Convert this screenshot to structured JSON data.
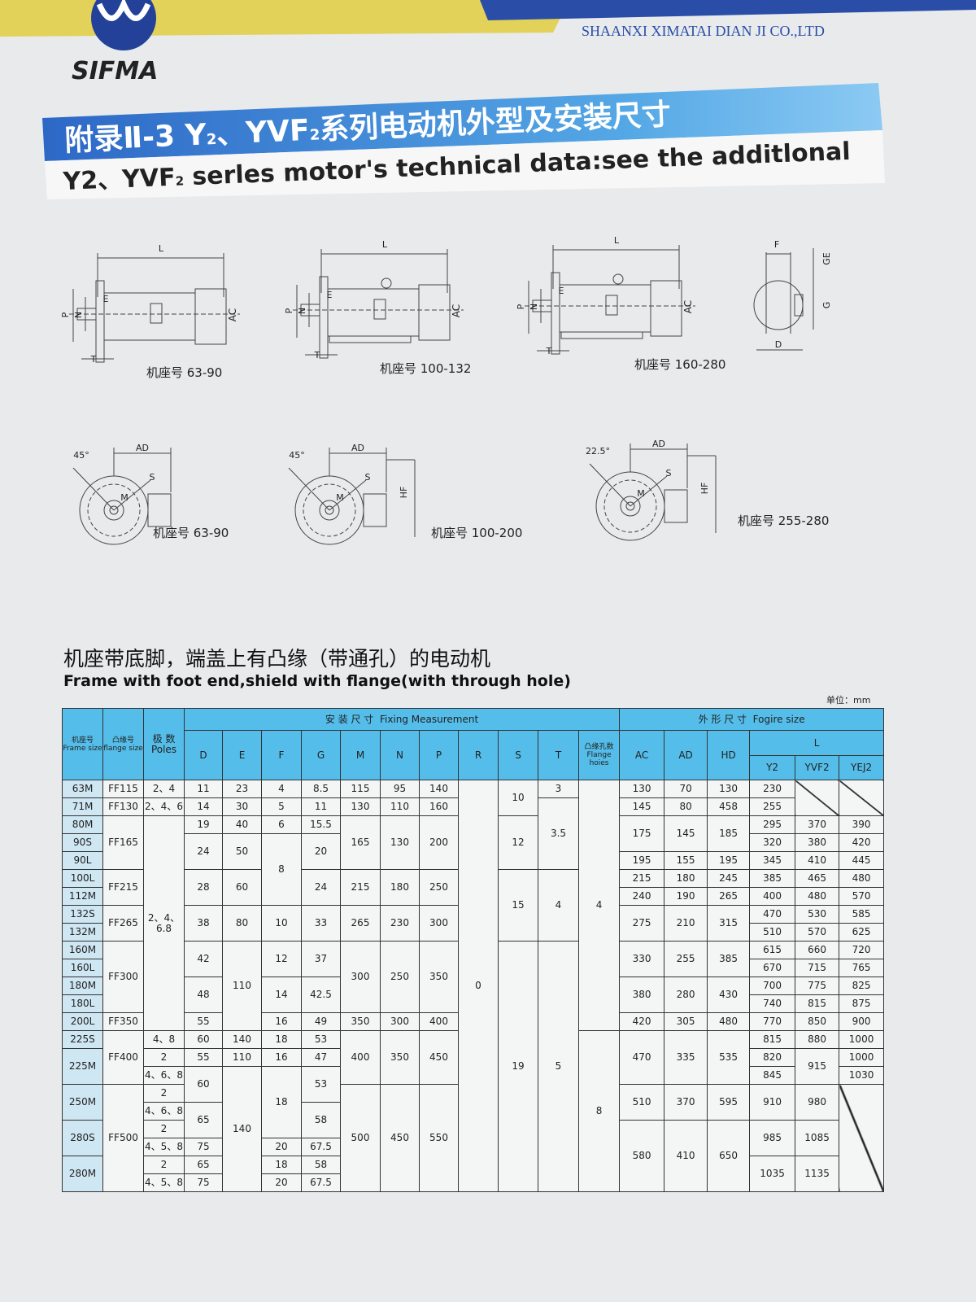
{
  "header": {
    "logo": "SIFMA",
    "company": "SHAANXI XIMATAI DIAN JI CO.,LTD"
  },
  "banner": {
    "title_parts": [
      "附录Ⅱ-3 Y",
      "2",
      "、YVF",
      "2",
      "系列电动机外型及安装尺寸"
    ],
    "subtitle_parts": [
      "Y2、YVF",
      "2",
      " serles motor's technical data:see the additlonal"
    ]
  },
  "drawings": {
    "side_views": [
      {
        "labels": [
          "L",
          "P",
          "N",
          "E",
          "T",
          "AC"
        ],
        "caption": "机座号 63-90"
      },
      {
        "labels": [
          "L",
          "P",
          "N",
          "E",
          "T",
          "AC"
        ],
        "caption": "机座号 100-132"
      },
      {
        "labels": [
          "L",
          "P",
          "N",
          "E",
          "T",
          "AC"
        ],
        "caption": "机座号 160-280"
      }
    ],
    "shaft": {
      "labels": [
        "F",
        "GE",
        "G",
        "D"
      ]
    },
    "end_views": [
      {
        "labels": [
          "45°",
          "AD",
          "S",
          "M"
        ],
        "caption": "机座号 63-90"
      },
      {
        "labels": [
          "45°",
          "AD",
          "S",
          "M",
          "HF"
        ],
        "caption": "机座号 100-200"
      },
      {
        "labels": [
          "22.5°",
          "AD",
          "S",
          "M",
          "HF"
        ],
        "caption": "机座号 255-280"
      }
    ]
  },
  "section": {
    "title_cn": "机座带底脚，端盖上有凸缘（带通孔）的电动机",
    "title_en": "Frame with foot end,shield with flange(with through hole)",
    "unit": "单位：mm"
  },
  "table": {
    "header": {
      "frame_cn": "机座号",
      "frame_en": "Frame size",
      "flange_cn": "凸缘号",
      "flange_en": "flange size",
      "poles_cn": "极 数",
      "poles_en": "Poles",
      "fixing_cn": "安 装 尺 寸",
      "fixing_en": "Fixing Measurement",
      "outline_cn": "外 形 尺 寸",
      "outline_en": "Fogire size",
      "fixing_columns": [
        "D",
        "E",
        "F",
        "G",
        "M",
        "N",
        "P",
        "R",
        "S",
        "T"
      ],
      "holes_cn": "凸缘孔数",
      "holes_en": "Flange hoies",
      "outline_columns": [
        "AC",
        "AD",
        "HD"
      ],
      "length": "L",
      "length_columns": [
        "Y2",
        "YVF2",
        "YEJ2"
      ]
    },
    "rows": [
      [
        "63M",
        "FF115",
        "2、4",
        "11",
        "23",
        "4",
        "8.5",
        "115",
        "95",
        "140",
        "0",
        "10",
        "3",
        "4",
        "130",
        "70",
        "130",
        "230"
      ],
      [
        "71M",
        "FF130",
        "2、4、6",
        "14",
        "30",
        "5",
        "11",
        "130",
        "110",
        "160",
        "3.5",
        "145",
        "80",
        "458",
        "255"
      ],
      [
        "80M",
        "FF165",
        "2、4、6.8",
        "19",
        "40",
        "6",
        "15.5",
        "165",
        "130",
        "200",
        "12",
        "175",
        "145",
        "185",
        "295",
        "370",
        "390"
      ],
      [
        "90S",
        "24",
        "50",
        "8",
        "20",
        "320",
        "380",
        "420"
      ],
      [
        "90L",
        "195",
        "155",
        "195",
        "345",
        "410",
        "445"
      ],
      [
        "100L",
        "FF215",
        "28",
        "60",
        "24",
        "215",
        "180",
        "250",
        "15",
        "4",
        "215",
        "180",
        "245",
        "385",
        "465",
        "480"
      ],
      [
        "112M",
        "240",
        "190",
        "265",
        "400",
        "480",
        "570"
      ],
      [
        "132S",
        "FF265",
        "38",
        "80",
        "10",
        "33",
        "265",
        "230",
        "300",
        "275",
        "210",
        "315",
        "470",
        "530",
        "585"
      ],
      [
        "132M",
        "510",
        "570",
        "625"
      ],
      [
        "160M",
        "FF300",
        "42",
        "110",
        "12",
        "37",
        "300",
        "250",
        "350",
        "19",
        "5",
        "330",
        "255",
        "385",
        "615",
        "660",
        "720"
      ],
      [
        "160L",
        "670",
        "715",
        "765"
      ],
      [
        "180M",
        "48",
        "14",
        "42.5",
        "380",
        "280",
        "430",
        "700",
        "775",
        "825"
      ],
      [
        "180L",
        "740",
        "815",
        "875"
      ],
      [
        "200L",
        "FF350",
        "55",
        "16",
        "49",
        "350",
        "300",
        "400",
        "420",
        "305",
        "480",
        "770",
        "850",
        "900"
      ],
      [
        "225S",
        "FF400",
        "4、8",
        "60",
        "140",
        "18",
        "53",
        "400",
        "350",
        "450",
        "8",
        "470",
        "335",
        "535",
        "815",
        "880",
        "1000"
      ],
      [
        "225M",
        "2",
        "55",
        "110",
        "16",
        "47",
        "820",
        "915",
        "1000"
      ],
      [
        "4、6、8",
        "60",
        "140",
        "18",
        "53",
        "845",
        "1030"
      ],
      [
        "250M",
        "FF500",
        "2",
        "500",
        "450",
        "550",
        "510",
        "370",
        "595",
        "910",
        "980"
      ],
      [
        "4、6、8",
        "65",
        "58"
      ],
      [
        "280S",
        "2",
        "580",
        "410",
        "650",
        "985",
        "1085"
      ],
      [
        "4、5、8",
        "75",
        "20",
        "67.5"
      ],
      [
        "280M",
        "2",
        "65",
        "18",
        "58",
        "1035",
        "1135"
      ],
      [
        "4、5、8",
        "75",
        "20",
        "67.5"
      ]
    ]
  }
}
